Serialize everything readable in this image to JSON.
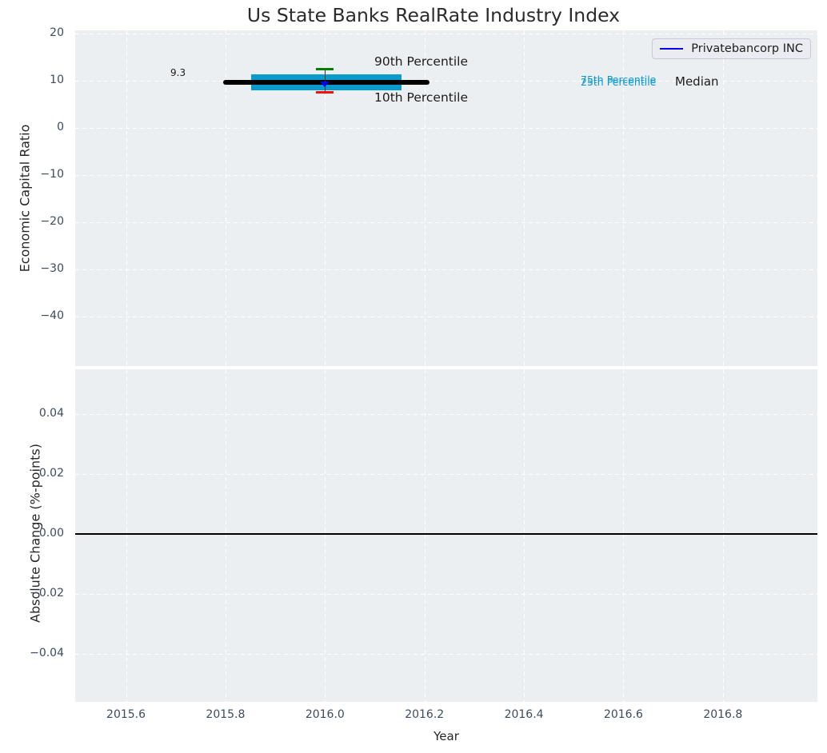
{
  "figure": {
    "title": "Us State Banks RealRate Industry Index"
  },
  "legend": {
    "label": "Privatebancorp INC"
  },
  "annotations": {
    "value_label": "9.3",
    "p90_label": "90th Percentile",
    "p10_label": "10th Percentile",
    "p75_label": "75th Percentile",
    "p25_label": "25th Percentile",
    "median_label": "Median"
  },
  "colors": {
    "iqr_box": "#0a9bcd",
    "p90_cap": "#008000",
    "p10_cap": "#f01010",
    "median_line": "#000000",
    "company": "#0000ee",
    "whisker": "#333333",
    "zero_line": "#000000",
    "plot_bg": "#eceff1",
    "grid": "#ffffff",
    "tick_text": "#3d4b5f"
  },
  "chart_data": [
    {
      "type": "scatter",
      "panel": "top",
      "title": "Us State Banks RealRate Industry Index",
      "xlabel": "",
      "ylabel": "Economic Capital Ratio",
      "xlim": [
        2015.497,
        2016.99
      ],
      "ylim": [
        -50.5,
        20.7
      ],
      "grid": true,
      "legend_position": "upper right",
      "x_ticks": [
        {
          "v": 2015.6,
          "label": "2015.6"
        },
        {
          "v": 2015.8,
          "label": "2015.8"
        },
        {
          "v": 2016.0,
          "label": "2016.0"
        },
        {
          "v": 2016.2,
          "label": "2016.2"
        },
        {
          "v": 2016.4,
          "label": "2016.4"
        },
        {
          "v": 2016.6,
          "label": "2016.6"
        },
        {
          "v": 2016.8,
          "label": "2016.8"
        }
      ],
      "y_ticks": [
        {
          "v": 20,
          "label": "20"
        },
        {
          "v": 10,
          "label": "10"
        },
        {
          "v": 0,
          "label": "0"
        },
        {
          "v": -10,
          "label": "−10"
        },
        {
          "v": -20,
          "label": "−20"
        },
        {
          "v": -30,
          "label": "−30"
        },
        {
          "v": -40,
          "label": "−40"
        }
      ],
      "series": [
        {
          "name": "Privatebancorp INC",
          "x": [
            2016.0
          ],
          "y": [
            9.3
          ],
          "marker": "triangle-down"
        }
      ],
      "industry_percentiles": {
        "year": 2016.0,
        "p10": 7.5,
        "p25": 8.0,
        "median": 9.7,
        "p75": 11.4,
        "p90": 12.4,
        "median_line_xspan": [
          2015.795,
          2016.21
        ],
        "iqr_box_xspan": [
          2015.851,
          2016.154
        ]
      }
    },
    {
      "type": "line",
      "panel": "bottom",
      "xlabel": "Year",
      "ylabel": "Absolute Change (%-points)",
      "xlim": [
        2015.497,
        2016.99
      ],
      "ylim": [
        -0.056,
        0.055
      ],
      "grid": true,
      "x_ticks": [
        {
          "v": 2015.6,
          "label": "2015.6"
        },
        {
          "v": 2015.8,
          "label": "2015.8"
        },
        {
          "v": 2016.0,
          "label": "2016.0"
        },
        {
          "v": 2016.2,
          "label": "2016.2"
        },
        {
          "v": 2016.4,
          "label": "2016.4"
        },
        {
          "v": 2016.6,
          "label": "2016.6"
        },
        {
          "v": 2016.8,
          "label": "2016.8"
        }
      ],
      "y_ticks": [
        {
          "v": 0.04,
          "label": "0.04"
        },
        {
          "v": 0.02,
          "label": "0.02"
        },
        {
          "v": 0,
          "label": "0.00"
        },
        {
          "v": -0.02,
          "label": "−0.02"
        },
        {
          "v": -0.04,
          "label": "−0.04"
        }
      ],
      "zero_line_y": 0.0,
      "series": []
    }
  ]
}
